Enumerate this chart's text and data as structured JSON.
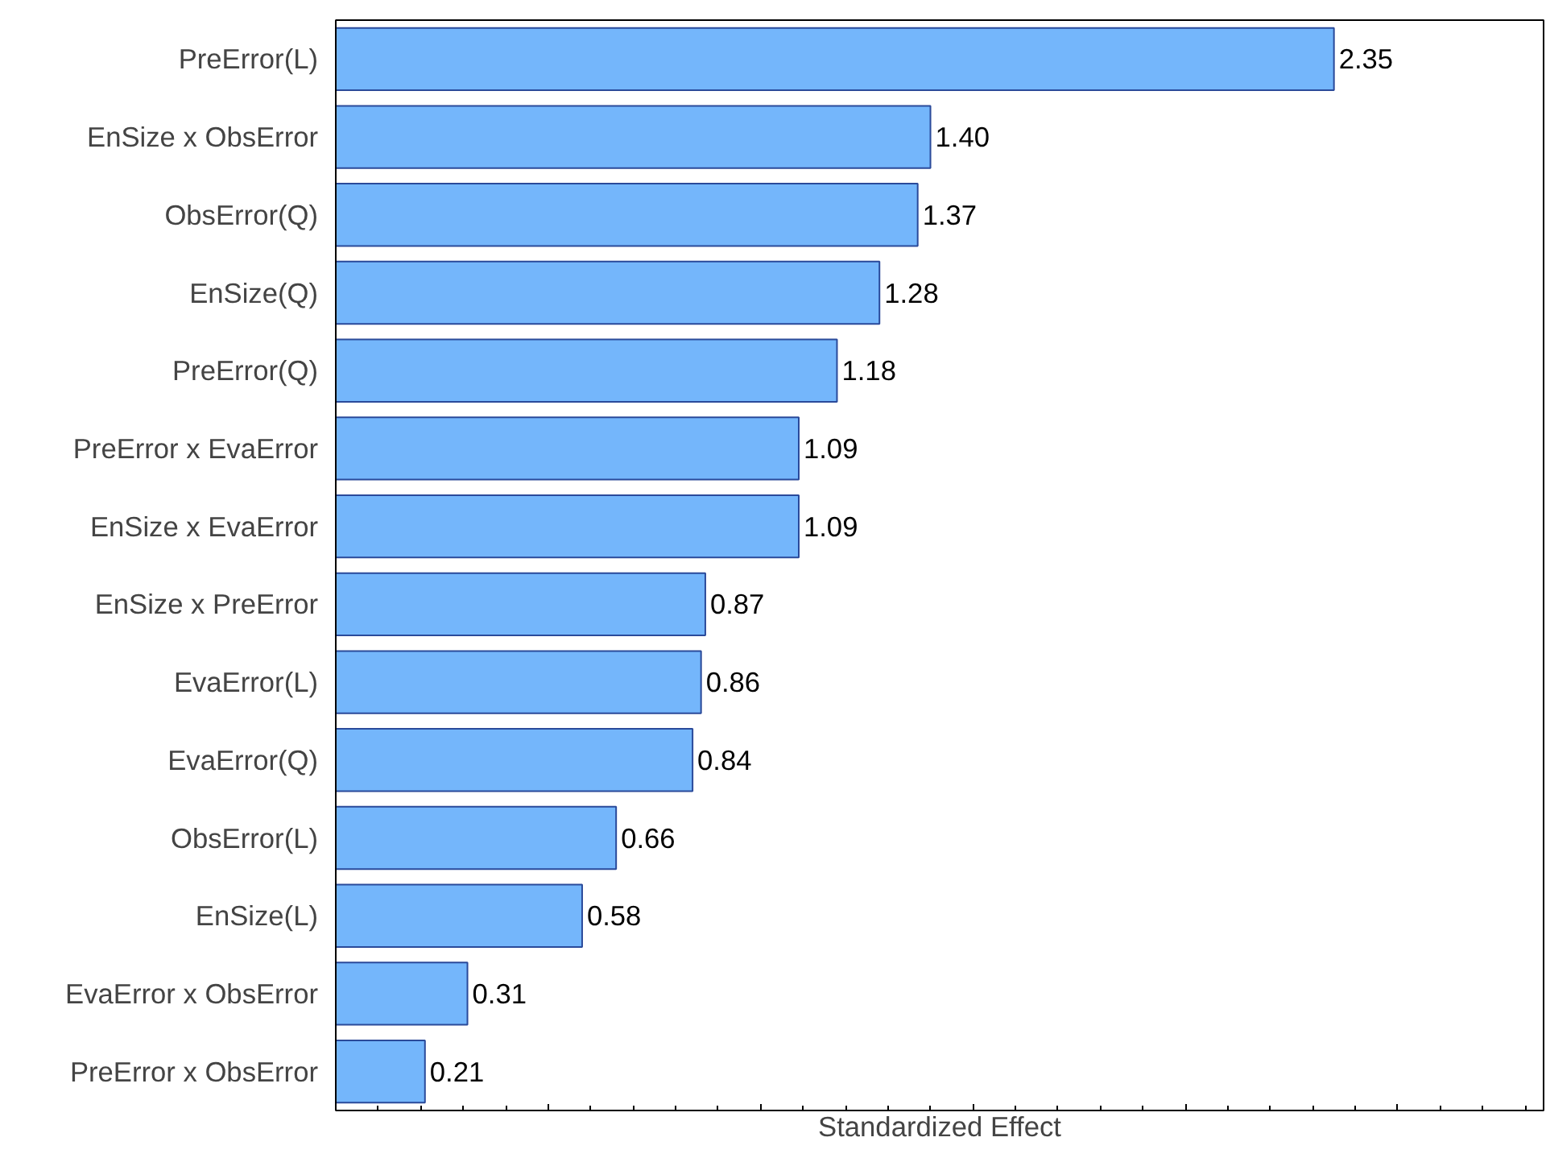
{
  "chart_data": {
    "type": "bar",
    "orientation": "horizontal",
    "xlabel": "Standardized Effect",
    "categories": [
      "PreError(L)",
      "EnSize x ObsError",
      "ObsError(Q)",
      "EnSize(Q)",
      "PreError(Q)",
      "PreError x EvaError",
      "EnSize x EvaError",
      "EnSize x PreError",
      "EvaError(L)",
      "EvaError(Q)",
      "ObsError(L)",
      "EnSize(L)",
      "EvaError x ObsError",
      "PreError x ObsError"
    ],
    "values": [
      2.35,
      1.4,
      1.37,
      1.28,
      1.18,
      1.09,
      1.09,
      0.87,
      0.86,
      0.84,
      0.66,
      0.58,
      0.31,
      0.21
    ],
    "value_labels": [
      "2.35",
      "1.40",
      "1.37",
      "1.28",
      "1.18",
      "1.09",
      "1.09",
      "0.87",
      "0.86",
      "0.84",
      "0.66",
      "0.58",
      "0.31",
      "0.21"
    ],
    "color": "#74b6fb",
    "tick_labels": "y",
    "grid": false
  }
}
